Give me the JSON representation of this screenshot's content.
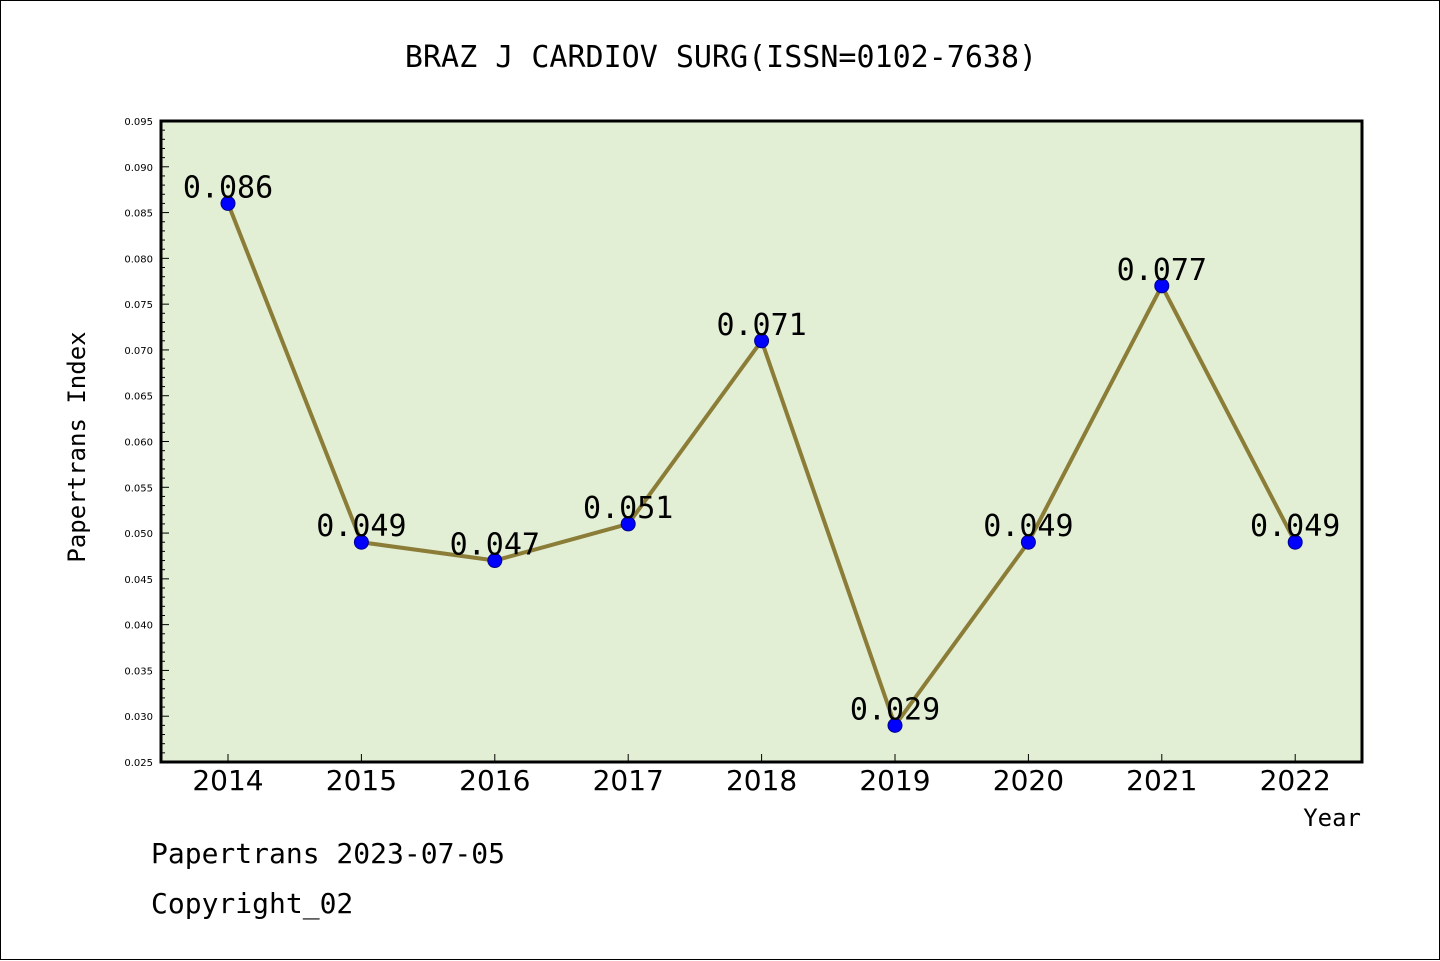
{
  "colors": {
    "plot_background": "#e2efd5",
    "line": "#8b7d37",
    "marker": "#0000ff",
    "frame": "#000000"
  },
  "footer": {
    "line1": "Papertrans 2023-07-05",
    "line2": "Copyright_02"
  },
  "chart_data": {
    "type": "line",
    "title": "BRAZ J CARDIOV SURG(ISSN=0102-7638)",
    "xlabel": "Year",
    "ylabel": "Papertrans Index",
    "categories": [
      "2014",
      "2015",
      "2016",
      "2017",
      "2018",
      "2019",
      "2020",
      "2021",
      "2022"
    ],
    "values": [
      0.086,
      0.049,
      0.047,
      0.051,
      0.071,
      0.029,
      0.049,
      0.077,
      0.049
    ],
    "data_labels": [
      "0.086",
      "0.049",
      "0.047",
      "0.051",
      "0.071",
      "0.029",
      "0.049",
      "0.077",
      "0.049"
    ],
    "ylim": [
      0.025,
      0.095
    ],
    "yticks": [
      "0.025",
      "0.030",
      "0.035",
      "0.040",
      "0.045",
      "0.050",
      "0.055",
      "0.060",
      "0.065",
      "0.070",
      "0.075",
      "0.080",
      "0.085",
      "0.090",
      "0.095"
    ],
    "grid": false,
    "legend": "none"
  }
}
